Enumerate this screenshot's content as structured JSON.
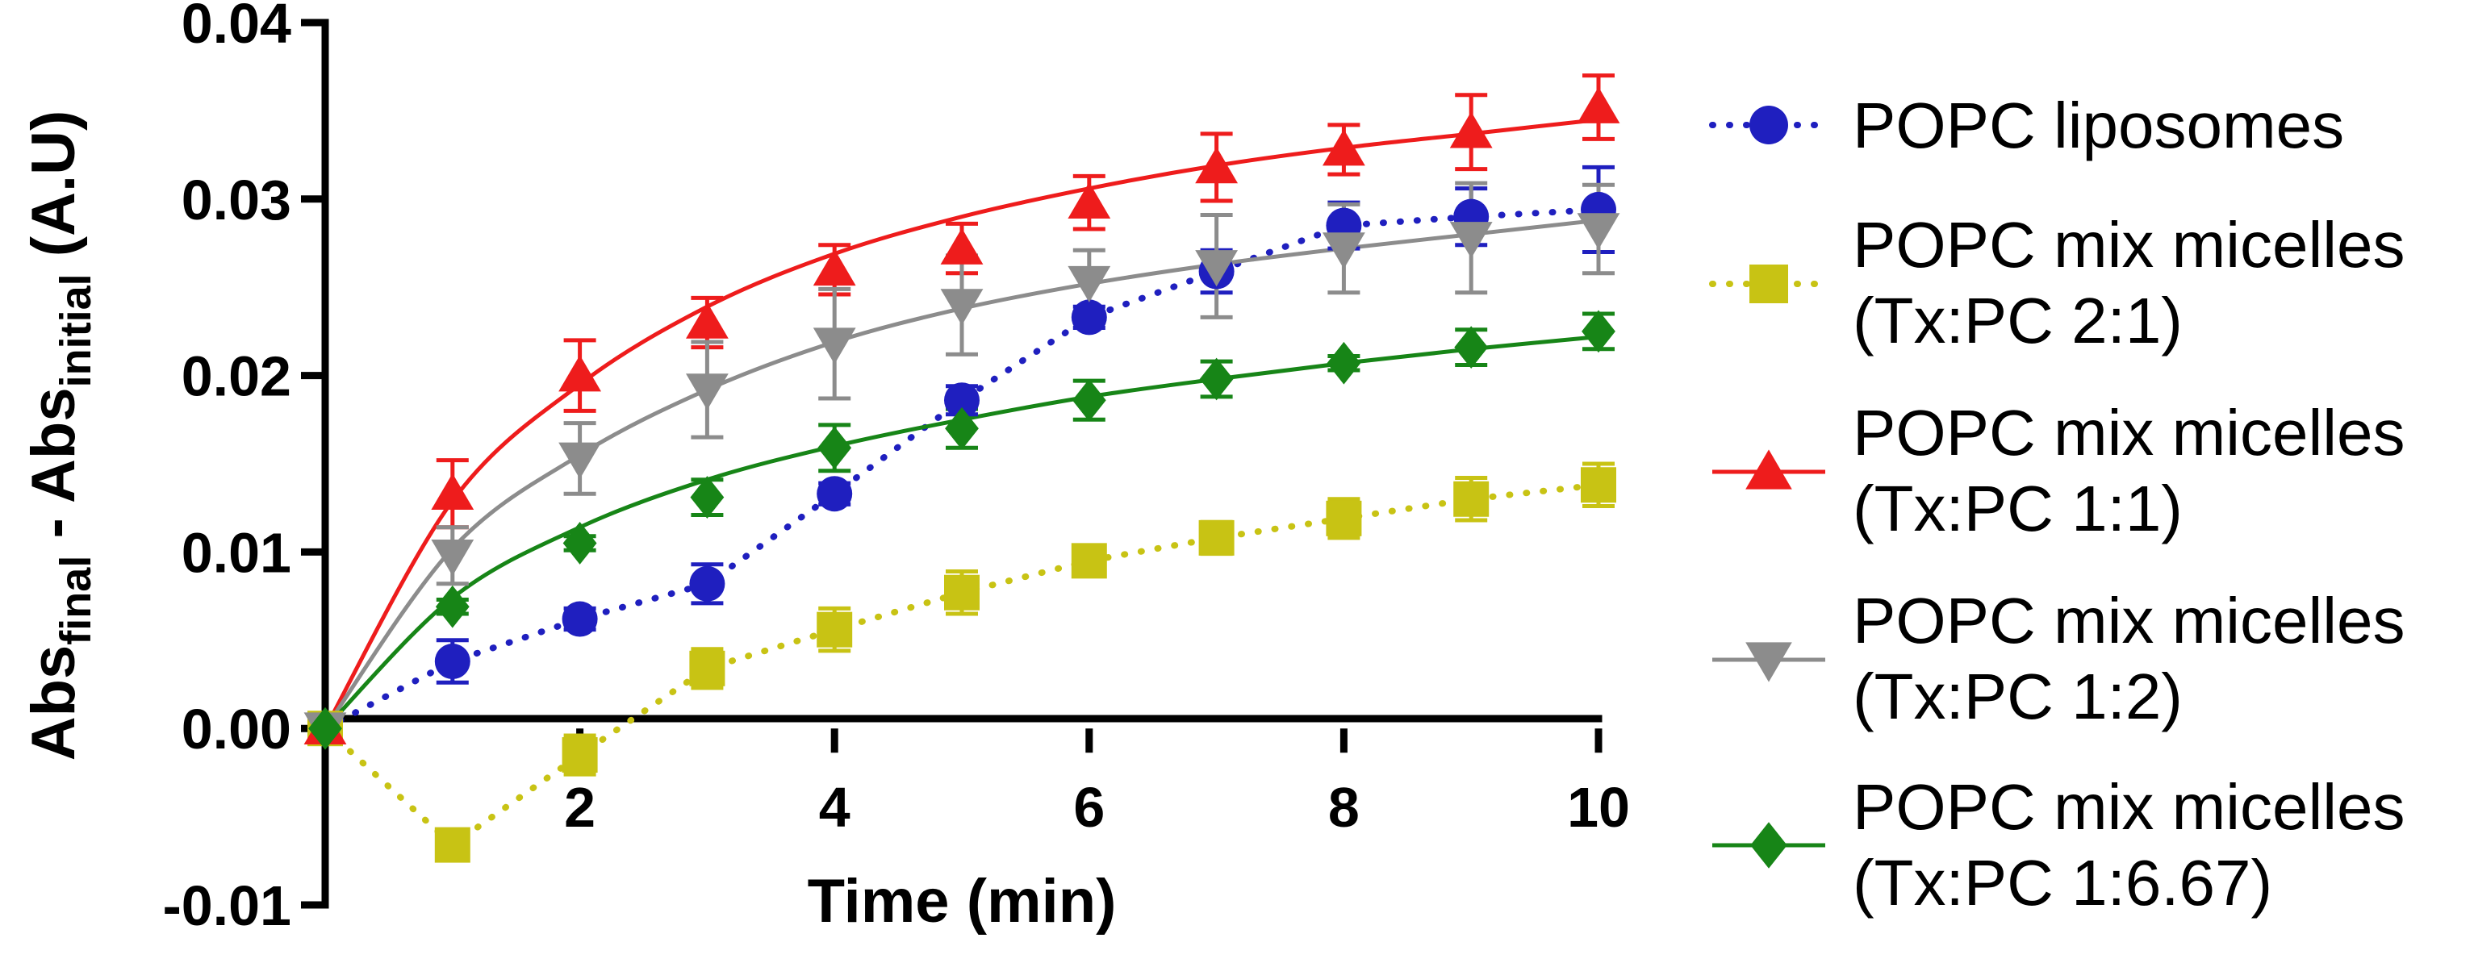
{
  "chart_data": {
    "type": "scatter",
    "title": "",
    "xlabel": "Time (min)",
    "ylabel": {
      "main_a": "Abs",
      "sub_a": "final",
      "sep": " - ",
      "main_b": "Abs",
      "sub_b": "initial",
      "unit": " (A.U)"
    },
    "xlim": [
      0,
      10
    ],
    "ylim": [
      -0.01,
      0.04
    ],
    "xticks": [
      2,
      4,
      6,
      8,
      10
    ],
    "yticks": [
      -0.01,
      0.0,
      0.01,
      0.02,
      0.03,
      0.04
    ],
    "ytick_labels": [
      "-0.01",
      "0.00",
      "0.01",
      "0.02",
      "0.03",
      "0.04"
    ],
    "xtick_labels": [
      "2",
      "4",
      "6",
      "8",
      "10"
    ],
    "grid": false,
    "legend_position": "right",
    "series": [
      {
        "name": "POPC liposomes",
        "legend_lines": [
          "POPC liposomes"
        ],
        "color": "#1f1fbf",
        "marker": "circle",
        "line": "dotted",
        "x": [
          0,
          1,
          2,
          3,
          4,
          5,
          6,
          7,
          8,
          9,
          10
        ],
        "y": [
          0.0,
          0.0038,
          0.0062,
          0.0082,
          0.0133,
          0.0186,
          0.0233,
          0.0259,
          0.0285,
          0.029,
          0.0294
        ],
        "err": [
          0.0,
          0.0012,
          0.0006,
          0.0011,
          0.0006,
          0.0008,
          0.0006,
          0.0012,
          0.0013,
          0.0016,
          0.0024
        ]
      },
      {
        "name": "POPC mix micelles (Tx:PC 2:1)",
        "legend_lines": [
          "POPC mix micelles",
          "(Tx:PC 2:1)"
        ],
        "color": "#c8c314",
        "marker": "square",
        "line": "dotted",
        "x": [
          0,
          1,
          2,
          3,
          4,
          5,
          6,
          7,
          8,
          9,
          10
        ],
        "y": [
          0.0,
          -0.0066,
          -0.0015,
          0.0034,
          0.0056,
          0.0077,
          0.0095,
          0.0108,
          0.0119,
          0.013,
          0.0138
        ],
        "err": [
          0.0,
          0.0008,
          0.0011,
          0.0011,
          0.0012,
          0.0012,
          0.0008,
          0.0009,
          0.0011,
          0.0012,
          0.0012
        ]
      },
      {
        "name": "POPC mix micelles (Tx:PC 1:1)",
        "legend_lines": [
          "POPC mix micelles",
          "(Tx:PC 1:1)"
        ],
        "color": "#ee1c1c",
        "marker": "triangle-up",
        "line": "solid",
        "x": [
          0,
          1,
          2,
          3,
          4,
          5,
          6,
          7,
          8,
          9,
          10
        ],
        "y": [
          0.0,
          0.0133,
          0.02,
          0.023,
          0.026,
          0.0272,
          0.0298,
          0.0318,
          0.0328,
          0.0338,
          0.0352
        ],
        "err": [
          0.0,
          0.0019,
          0.002,
          0.0014,
          0.0014,
          0.0014,
          0.0015,
          0.0019,
          0.0014,
          0.0021,
          0.0018
        ],
        "fit": [
          0.0,
          0.0129,
          0.0195,
          0.0239,
          0.0269,
          0.029,
          0.0306,
          0.0319,
          0.0329,
          0.0337,
          0.0345
        ]
      },
      {
        "name": "POPC mix micelles (Tx:PC 1:2)",
        "legend_lines": [
          "POPC mix micelles",
          "(Tx:PC 1:2)"
        ],
        "color": "#8c8c8c",
        "marker": "triangle-down",
        "line": "solid",
        "x": [
          0,
          1,
          2,
          3,
          4,
          5,
          6,
          7,
          8,
          9,
          10
        ],
        "y": [
          0.0,
          0.0098,
          0.0153,
          0.0192,
          0.0218,
          0.024,
          0.0253,
          0.0262,
          0.0272,
          0.0278,
          0.0283
        ],
        "err": [
          0.0,
          0.0016,
          0.002,
          0.0027,
          0.0031,
          0.0028,
          0.0018,
          0.0029,
          0.0025,
          0.0031,
          0.0025
        ],
        "fit": [
          0.0,
          0.0102,
          0.0155,
          0.0192,
          0.0219,
          0.0238,
          0.0252,
          0.0263,
          0.0272,
          0.028,
          0.0288
        ]
      },
      {
        "name": "POPC mix micelles (Tx:PC 1:6.67)",
        "legend_lines": [
          "POPC mix micelles",
          "(Tx:PC 1:6.67)"
        ],
        "color": "#178517",
        "marker": "diamond",
        "line": "solid",
        "x": [
          0,
          1,
          2,
          3,
          4,
          5,
          6,
          7,
          8,
          9,
          10
        ],
        "y": [
          0.0,
          0.0069,
          0.0105,
          0.0131,
          0.0159,
          0.017,
          0.0186,
          0.0198,
          0.0207,
          0.0216,
          0.0225
        ],
        "err": [
          0.0,
          0.0004,
          0.0004,
          0.001,
          0.0013,
          0.0011,
          0.0011,
          0.001,
          0.0004,
          0.001,
          0.001
        ],
        "fit": [
          0.0,
          0.0074,
          0.0114,
          0.0141,
          0.016,
          0.0175,
          0.0188,
          0.0198,
          0.0207,
          0.0215,
          0.0222
        ]
      }
    ]
  }
}
